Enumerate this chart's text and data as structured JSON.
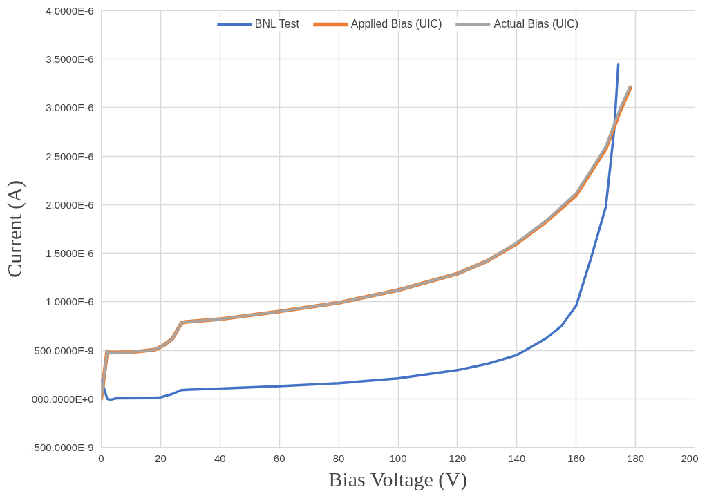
{
  "chart_data": {
    "type": "line",
    "xlabel": "Bias Voltage (V)",
    "ylabel": "Current (A)",
    "xlim": [
      0,
      200
    ],
    "xticks": [
      0,
      20,
      40,
      60,
      80,
      100,
      120,
      140,
      160,
      180,
      200
    ],
    "ylim": [
      -5e-07,
      4e-06
    ],
    "yticks": [
      {
        "value": -5e-07,
        "label": "-500.0000E-9"
      },
      {
        "value": 0,
        "label": "000.0000E+0"
      },
      {
        "value": 5e-07,
        "label": "500.0000E-9"
      },
      {
        "value": 1e-06,
        "label": "1.0000E-6"
      },
      {
        "value": 1.5e-06,
        "label": "1.5000E-6"
      },
      {
        "value": 2e-06,
        "label": "2.0000E-6"
      },
      {
        "value": 2.5e-06,
        "label": "2.5000E-6"
      },
      {
        "value": 3e-06,
        "label": "3.0000E-6"
      },
      {
        "value": 3.5e-06,
        "label": "3.5000E-6"
      },
      {
        "value": 4e-06,
        "label": "4.0000E-6"
      }
    ],
    "grid": true,
    "legend": "top",
    "marker": "none",
    "line_style": "solid",
    "series": [
      {
        "name": "BNL Test",
        "color": "#4472c4",
        "x": [
          0,
          1,
          2,
          3,
          5,
          15,
          20,
          24,
          27,
          30,
          40,
          60,
          80,
          100,
          120,
          130,
          140,
          150,
          155,
          160,
          165,
          170,
          172.8,
          174.2
        ],
        "values": [
          2e-07,
          1e-07,
          0,
          -1e-08,
          5e-09,
          8e-09,
          1.5e-08,
          5e-08,
          9e-08,
          9.5e-08,
          1.05e-07,
          1.3e-07,
          1.6e-07,
          2.1e-07,
          2.95e-07,
          3.6e-07,
          4.5e-07,
          6.25e-07,
          7.5e-07,
          9.6e-07,
          1.45e-06,
          1.98e-06,
          2.77e-06,
          3.45e-06
        ]
      },
      {
        "name": "Applied Bias (UIC)",
        "color": "#ed7d31",
        "x": [
          0,
          2,
          3,
          10,
          18,
          21,
          24,
          27,
          28,
          40,
          60,
          80,
          100,
          120,
          130,
          140,
          150,
          160,
          170,
          175,
          178.3
        ],
        "values": [
          0,
          4.9e-07,
          4.75e-07,
          4.8e-07,
          5.05e-07,
          5.5e-07,
          6.2e-07,
          7.8e-07,
          7.9e-07,
          8.2e-07,
          9e-07,
          9.9e-07,
          1.12e-06,
          1.29e-06,
          1.42e-06,
          1.6e-06,
          1.83e-06,
          2.1e-06,
          2.58e-06,
          2.98e-06,
          3.21e-06
        ]
      },
      {
        "name": "Actual Bias (UIC)",
        "color": "#a5a5a5",
        "x": [
          0,
          2,
          3,
          10,
          18,
          21,
          24,
          27,
          28,
          40,
          60,
          80,
          100,
          120,
          130,
          140,
          150,
          160,
          170,
          175,
          178.2
        ],
        "values": [
          0,
          4.9e-07,
          4.75e-07,
          4.8e-07,
          5.05e-07,
          5.5e-07,
          6.2e-07,
          7.8e-07,
          7.9e-07,
          8.2e-07,
          9e-07,
          9.9e-07,
          1.12e-06,
          1.29e-06,
          1.42e-06,
          1.61e-06,
          1.84e-06,
          2.12e-06,
          2.6e-06,
          3.01e-06,
          3.22e-06
        ]
      }
    ]
  }
}
